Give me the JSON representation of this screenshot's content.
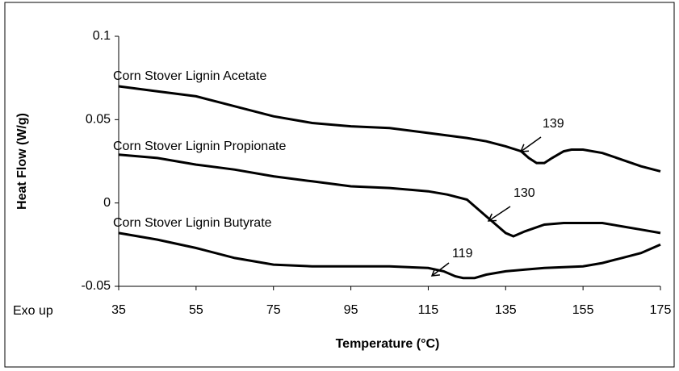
{
  "chart_data": {
    "type": "line",
    "y_label": "Heat Flow (W/g)",
    "x_label": "Temperature (°C)",
    "note": "Exo up",
    "xlim": [
      35,
      175
    ],
    "xticks": [
      35,
      55,
      75,
      95,
      115,
      135,
      155,
      175
    ],
    "ylim": [
      -0.05,
      0.1
    ],
    "yticks": [
      -0.05,
      0,
      0.05,
      0.1
    ],
    "series": [
      {
        "name": "Corn Stover Lignin Acetate",
        "color": "#000000",
        "x": [
          35,
          45,
          55,
          65,
          75,
          85,
          95,
          105,
          115,
          125,
          130,
          135,
          139,
          141,
          143,
          145,
          147,
          150,
          152,
          155,
          160,
          165,
          170,
          175
        ],
        "values": [
          0.07,
          0.067,
          0.064,
          0.058,
          0.052,
          0.048,
          0.046,
          0.045,
          0.042,
          0.039,
          0.037,
          0.034,
          0.031,
          0.027,
          0.024,
          0.024,
          0.027,
          0.031,
          0.032,
          0.032,
          0.03,
          0.026,
          0.022,
          0.019
        ]
      },
      {
        "name": "Corn Stover Lignin Propionate",
        "color": "#000000",
        "x": [
          35,
          45,
          55,
          65,
          75,
          85,
          95,
          105,
          115,
          120,
          125,
          130,
          133,
          135,
          137,
          140,
          145,
          150,
          155,
          160,
          165,
          170,
          175
        ],
        "values": [
          0.029,
          0.027,
          0.023,
          0.02,
          0.016,
          0.013,
          0.01,
          0.009,
          0.007,
          0.005,
          0.002,
          -0.008,
          -0.014,
          -0.018,
          -0.02,
          -0.017,
          -0.013,
          -0.012,
          -0.012,
          -0.012,
          -0.014,
          -0.016,
          -0.018
        ]
      },
      {
        "name": "Corn Stover Lignin Butyrate",
        "color": "#000000",
        "x": [
          35,
          45,
          55,
          65,
          75,
          85,
          95,
          105,
          115,
          119,
          122,
          124,
          127,
          130,
          135,
          140,
          145,
          155,
          160,
          165,
          170,
          175
        ],
        "values": [
          -0.018,
          -0.022,
          -0.027,
          -0.033,
          -0.037,
          -0.038,
          -0.038,
          -0.038,
          -0.039,
          -0.041,
          -0.044,
          -0.045,
          -0.045,
          -0.043,
          -0.041,
          -0.04,
          -0.039,
          -0.038,
          -0.036,
          -0.033,
          -0.03,
          -0.025
        ]
      }
    ],
    "annotations": [
      "139",
      "130",
      "119"
    ]
  }
}
